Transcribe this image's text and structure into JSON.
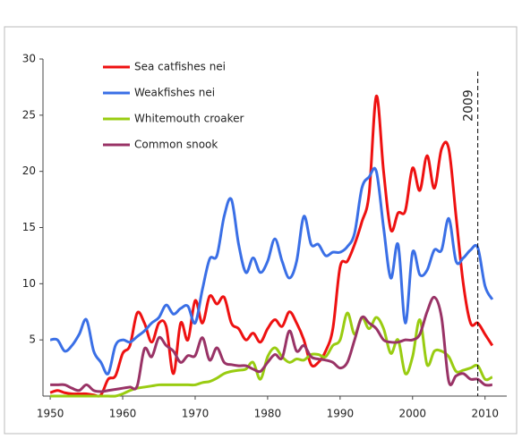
{
  "chart_data": {
    "type": "line",
    "x": [
      1950,
      1951,
      1952,
      1953,
      1954,
      1955,
      1956,
      1957,
      1958,
      1959,
      1960,
      1961,
      1962,
      1963,
      1964,
      1965,
      1966,
      1967,
      1968,
      1969,
      1970,
      1971,
      1972,
      1973,
      1974,
      1975,
      1976,
      1977,
      1978,
      1979,
      1980,
      1981,
      1982,
      1983,
      1984,
      1985,
      1986,
      1987,
      1988,
      1989,
      1990,
      1991,
      1992,
      1993,
      1994,
      1995,
      1996,
      1997,
      1998,
      1999,
      2000,
      2001,
      2002,
      2003,
      2004,
      2005,
      2006,
      2007,
      2008,
      2009,
      2010,
      2011
    ],
    "series": [
      {
        "name": "Sea catfishes nei",
        "color": "#ee1111",
        "values": [
          0.3,
          0.5,
          0.3,
          0.2,
          0.2,
          0.2,
          0.1,
          0.1,
          1.5,
          1.8,
          3.8,
          4.5,
          7.4,
          6.5,
          4.8,
          6.5,
          6.2,
          2.0,
          6.5,
          5.0,
          8.5,
          6.5,
          8.9,
          8.2,
          8.8,
          6.5,
          6.0,
          5.0,
          5.6,
          4.8,
          6.0,
          6.8,
          6.2,
          7.5,
          6.5,
          5.0,
          2.8,
          3.0,
          4.0,
          6.0,
          11.5,
          12.0,
          13.5,
          15.5,
          18.0,
          26.7,
          20.0,
          14.8,
          16.3,
          16.5,
          20.3,
          18.3,
          21.4,
          18.5,
          22.0,
          22.0,
          16.0,
          10.0,
          6.5,
          6.5,
          5.5,
          4.5
        ]
      },
      {
        "name": "Weakfishes nei",
        "color": "#3a6fe6",
        "values": [
          5.0,
          5.0,
          4.0,
          4.5,
          5.5,
          6.8,
          4.0,
          3.0,
          2.0,
          4.5,
          5.0,
          4.8,
          5.3,
          5.8,
          6.5,
          7.0,
          8.1,
          7.3,
          7.8,
          8.0,
          6.5,
          9.5,
          12.2,
          12.5,
          16.0,
          17.5,
          13.5,
          11.0,
          12.3,
          11.0,
          12.0,
          14.0,
          12.0,
          10.5,
          12.0,
          16.0,
          13.5,
          13.5,
          12.5,
          12.8,
          12.8,
          13.3,
          14.5,
          18.5,
          19.5,
          20.0,
          15.0,
          10.5,
          13.5,
          6.5,
          12.8,
          10.8,
          11.2,
          13.0,
          13.0,
          15.8,
          12.0,
          12.3,
          13.0,
          13.2,
          9.8,
          8.6
        ]
      },
      {
        "name": "Whitemouth croaker",
        "color": "#99cc11",
        "values": [
          0,
          0,
          0,
          0,
          0,
          0,
          0,
          0,
          0,
          0,
          0.2,
          0.5,
          0.7,
          0.8,
          0.9,
          1.0,
          1.0,
          1.0,
          1.0,
          1.0,
          1.0,
          1.2,
          1.3,
          1.6,
          2.0,
          2.2,
          2.3,
          2.4,
          3.0,
          1.5,
          3.5,
          4.3,
          3.5,
          3.0,
          3.3,
          3.2,
          3.7,
          3.7,
          3.5,
          4.5,
          5.0,
          7.4,
          5.5,
          7.0,
          6.0,
          7.0,
          6.0,
          3.8,
          5.0,
          2.0,
          3.5,
          6.8,
          2.8,
          4.0,
          4.0,
          3.5,
          2.2,
          2.3,
          2.5,
          2.7,
          1.5,
          1.7
        ]
      },
      {
        "name": "Common snook",
        "color": "#993366",
        "values": [
          1.0,
          1.0,
          1.0,
          0.7,
          0.5,
          1.0,
          0.5,
          0.4,
          0.5,
          0.6,
          0.7,
          0.8,
          0.9,
          4.2,
          3.5,
          5.2,
          4.5,
          4.0,
          3.0,
          3.6,
          3.6,
          5.2,
          3.2,
          4.3,
          3.0,
          2.8,
          2.7,
          2.7,
          2.4,
          2.2,
          3.0,
          3.7,
          3.4,
          5.8,
          4.0,
          4.5,
          3.5,
          3.3,
          3.2,
          3.0,
          2.5,
          3.0,
          5.0,
          7.0,
          6.5,
          6.0,
          5.0,
          4.8,
          4.8,
          5.0,
          5.0,
          5.5,
          7.5,
          8.8,
          7.0,
          1.3,
          1.8,
          2.0,
          1.5,
          1.5,
          1.0,
          1.0
        ]
      }
    ],
    "xlim": [
      1949,
      2013
    ],
    "xticks": [
      1950,
      1960,
      1970,
      1980,
      1990,
      2000,
      2010
    ],
    "ylim": [
      0,
      30
    ],
    "yticks": [
      5,
      10,
      15,
      20,
      25,
      30
    ],
    "annotations": [
      {
        "text": "2009",
        "x": 2009
      }
    ],
    "legend": "upper-left"
  }
}
